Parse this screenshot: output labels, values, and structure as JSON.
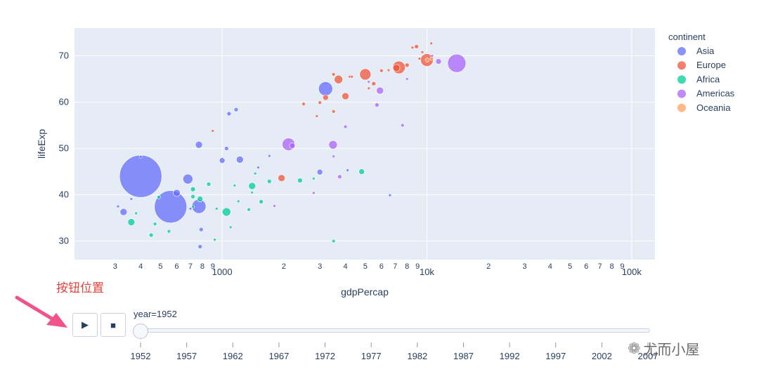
{
  "annotation": {
    "text": "按钮位置"
  },
  "controls": {
    "play_glyph": "▶",
    "stop_glyph": "■"
  },
  "slider": {
    "current_label": "year=1952",
    "current_value": 1952
  },
  "watermark": {
    "icon": "wechat-icon",
    "text": "尤而小屋"
  },
  "colors": {
    "Asia": "#636efa",
    "Europe": "#ef553b",
    "Africa": "#00cc96",
    "Americas": "#ab63fa",
    "Oceania": "#ffa15a",
    "plot_bg": "#e5ecf6",
    "grid": "#ffffff",
    "annotation": "#e0443e"
  },
  "chart_data": {
    "type": "scatter",
    "xlabel": "gdpPercap",
    "ylabel": "lifeExp",
    "x_scale": "log",
    "xlim": [
      190,
      130000
    ],
    "ylim": [
      26,
      76
    ],
    "y_ticks": [
      "30",
      "40",
      "50",
      "60",
      "70"
    ],
    "x_major_ticks": [
      {
        "value": 1000,
        "label": "1000"
      },
      {
        "value": 10000,
        "label": "10k"
      },
      {
        "value": 100000,
        "label": "100k"
      }
    ],
    "x_minor_ticks": [
      {
        "value": 300,
        "label": "3"
      },
      {
        "value": 400,
        "label": "4"
      },
      {
        "value": 500,
        "label": "5"
      },
      {
        "value": 600,
        "label": "6"
      },
      {
        "value": 700,
        "label": "7"
      },
      {
        "value": 800,
        "label": "8"
      },
      {
        "value": 900,
        "label": "9"
      },
      {
        "value": 2000,
        "label": "2"
      },
      {
        "value": 3000,
        "label": "3"
      },
      {
        "value": 4000,
        "label": "4"
      },
      {
        "value": 5000,
        "label": "5"
      },
      {
        "value": 6000,
        "label": "6"
      },
      {
        "value": 7000,
        "label": "7"
      },
      {
        "value": 8000,
        "label": "8"
      },
      {
        "value": 9000,
        "label": "9"
      },
      {
        "value": 20000,
        "label": "2"
      },
      {
        "value": 30000,
        "label": "3"
      },
      {
        "value": 40000,
        "label": "4"
      },
      {
        "value": 50000,
        "label": "5"
      },
      {
        "value": 60000,
        "label": "6"
      },
      {
        "value": 70000,
        "label": "7"
      },
      {
        "value": 80000,
        "label": "8"
      },
      {
        "value": 90000,
        "label": "9"
      }
    ],
    "legend": {
      "title": "continent",
      "placement": "right"
    },
    "series": [
      {
        "name": "Asia",
        "points": [
          {
            "x": 400,
            "y": 44.0,
            "s": 30
          },
          {
            "x": 560,
            "y": 37.4,
            "s": 23
          },
          {
            "x": 3200,
            "y": 62.9,
            "s": 10
          },
          {
            "x": 680,
            "y": 43.4,
            "s": 7
          },
          {
            "x": 770,
            "y": 37.5,
            "s": 10
          },
          {
            "x": 330,
            "y": 36.3,
            "s": 5
          },
          {
            "x": 600,
            "y": 40.4,
            "s": 5
          },
          {
            "x": 770,
            "y": 50.8,
            "s": 5
          },
          {
            "x": 1220,
            "y": 47.6,
            "s": 5
          },
          {
            "x": 1000,
            "y": 47.4,
            "s": 4
          },
          {
            "x": 3000,
            "y": 44.9,
            "s": 4
          },
          {
            "x": 1080,
            "y": 57.5,
            "s": 3
          },
          {
            "x": 1170,
            "y": 58.4,
            "s": 3
          },
          {
            "x": 1050,
            "y": 50.0,
            "s": 3
          },
          {
            "x": 780,
            "y": 28.8,
            "s": 3
          },
          {
            "x": 790,
            "y": 32.5,
            "s": 3
          },
          {
            "x": 6600,
            "y": 39.9,
            "s": 2
          },
          {
            "x": 4100,
            "y": 45.3,
            "s": 2
          },
          {
            "x": 1500,
            "y": 45.9,
            "s": 2
          },
          {
            "x": 700,
            "y": 37.0,
            "s": 2
          },
          {
            "x": 1700,
            "y": 48.4,
            "s": 2
          },
          {
            "x": 360,
            "y": 39.1,
            "s": 2
          },
          {
            "x": 400,
            "y": 48.2,
            "s": 2
          },
          {
            "x": 310,
            "y": 37.5,
            "s": 2
          }
        ]
      },
      {
        "name": "Europe",
        "points": [
          {
            "x": 7300,
            "y": 67.5,
            "s": 9
          },
          {
            "x": 10000,
            "y": 69.1,
            "s": 9
          },
          {
            "x": 5000,
            "y": 66.0,
            "s": 8
          },
          {
            "x": 3700,
            "y": 64.9,
            "s": 6
          },
          {
            "x": 4000,
            "y": 61.3,
            "s": 5
          },
          {
            "x": 7100,
            "y": 67.4,
            "s": 5
          },
          {
            "x": 3200,
            "y": 61.0,
            "s": 4
          },
          {
            "x": 1950,
            "y": 43.6,
            "s": 5
          },
          {
            "x": 8900,
            "y": 72.0,
            "s": 3
          },
          {
            "x": 8000,
            "y": 68.0,
            "s": 3
          },
          {
            "x": 5500,
            "y": 64.0,
            "s": 3
          },
          {
            "x": 6000,
            "y": 66.8,
            "s": 2.5
          },
          {
            "x": 3500,
            "y": 66.0,
            "s": 2.5
          },
          {
            "x": 4200,
            "y": 65.5,
            "s": 2
          },
          {
            "x": 3500,
            "y": 58.0,
            "s": 2.5
          },
          {
            "x": 2500,
            "y": 59.6,
            "s": 2.5
          },
          {
            "x": 3000,
            "y": 59.9,
            "s": 2.5
          },
          {
            "x": 10500,
            "y": 72.7,
            "s": 2
          },
          {
            "x": 9500,
            "y": 70.8,
            "s": 2
          },
          {
            "x": 8500,
            "y": 71.8,
            "s": 2
          },
          {
            "x": 5200,
            "y": 63.0,
            "s": 2
          },
          {
            "x": 2900,
            "y": 57.0,
            "s": 2
          },
          {
            "x": 900,
            "y": 53.8,
            "s": 2
          },
          {
            "x": 6500,
            "y": 66.9,
            "s": 2
          },
          {
            "x": 9200,
            "y": 69.4,
            "s": 2
          },
          {
            "x": 4300,
            "y": 65.5,
            "s": 2
          }
        ]
      },
      {
        "name": "Africa",
        "points": [
          {
            "x": 1050,
            "y": 36.3,
            "s": 6
          },
          {
            "x": 1400,
            "y": 41.9,
            "s": 5
          },
          {
            "x": 360,
            "y": 34.1,
            "s": 5
          },
          {
            "x": 4800,
            "y": 45.0,
            "s": 4
          },
          {
            "x": 780,
            "y": 39.1,
            "s": 4
          },
          {
            "x": 720,
            "y": 41.2,
            "s": 3.5
          },
          {
            "x": 2400,
            "y": 43.1,
            "s": 3.5
          },
          {
            "x": 1700,
            "y": 42.9,
            "s": 3
          },
          {
            "x": 860,
            "y": 42.3,
            "s": 3
          },
          {
            "x": 720,
            "y": 39.6,
            "s": 3
          },
          {
            "x": 1550,
            "y": 38.5,
            "s": 3
          },
          {
            "x": 450,
            "y": 31.3,
            "s": 3
          },
          {
            "x": 470,
            "y": 33.7,
            "s": 2.5
          },
          {
            "x": 550,
            "y": 32.1,
            "s": 2.5
          },
          {
            "x": 490,
            "y": 39.5,
            "s": 2.5
          },
          {
            "x": 940,
            "y": 37.0,
            "s": 2
          },
          {
            "x": 1200,
            "y": 38.6,
            "s": 2
          },
          {
            "x": 3500,
            "y": 30.0,
            "s": 2.5
          },
          {
            "x": 1350,
            "y": 36.8,
            "s": 2.5
          },
          {
            "x": 1400,
            "y": 40.5,
            "s": 2
          },
          {
            "x": 1450,
            "y": 44.6,
            "s": 2
          },
          {
            "x": 1100,
            "y": 33.0,
            "s": 2
          },
          {
            "x": 920,
            "y": 30.3,
            "s": 2
          },
          {
            "x": 2800,
            "y": 43.5,
            "s": 2
          },
          {
            "x": 1150,
            "y": 42.0,
            "s": 2
          },
          {
            "x": 380,
            "y": 36.0,
            "s": 2
          },
          {
            "x": 720,
            "y": 37.4,
            "s": 2
          }
        ]
      },
      {
        "name": "Americas",
        "points": [
          {
            "x": 13990,
            "y": 68.4,
            "s": 13
          },
          {
            "x": 2110,
            "y": 50.9,
            "s": 9
          },
          {
            "x": 3480,
            "y": 50.8,
            "s": 6
          },
          {
            "x": 5900,
            "y": 62.5,
            "s": 5
          },
          {
            "x": 2200,
            "y": 50.6,
            "s": 4
          },
          {
            "x": 11400,
            "y": 68.8,
            "s": 4
          },
          {
            "x": 5700,
            "y": 59.4,
            "s": 3
          },
          {
            "x": 3750,
            "y": 43.9,
            "s": 3
          },
          {
            "x": 4000,
            "y": 54.7,
            "s": 2.5
          },
          {
            "x": 7600,
            "y": 55.0,
            "s": 2.5
          },
          {
            "x": 1800,
            "y": 37.6,
            "s": 2
          },
          {
            "x": 2800,
            "y": 40.4,
            "s": 2
          },
          {
            "x": 5200,
            "y": 64.4,
            "s": 2
          },
          {
            "x": 10600,
            "y": 70.0,
            "s": 2
          },
          {
            "x": 8000,
            "y": 65.0,
            "s": 2
          },
          {
            "x": 3500,
            "y": 48.3,
            "s": 2
          }
        ]
      },
      {
        "name": "Oceania",
        "points": [
          {
            "x": 10040,
            "y": 69.1,
            "s": 3
          },
          {
            "x": 10560,
            "y": 69.4,
            "s": 2.5
          }
        ]
      }
    ],
    "slider_years": [
      1952,
      1957,
      1962,
      1967,
      1972,
      1977,
      1982,
      1987,
      1992,
      1997,
      2002,
      2007
    ]
  }
}
